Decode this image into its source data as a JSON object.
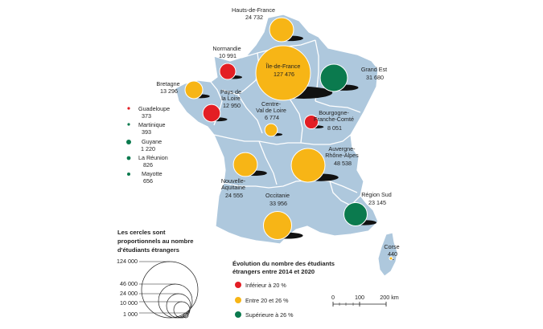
{
  "colors": {
    "land": "#aec8dd",
    "border": "#ffffff",
    "red": "#e31e24",
    "yellow": "#f7b516",
    "green": "#0b7a4e",
    "shadow": "#111111"
  },
  "regions": [
    {
      "name": "Hauts-de-France",
      "value": "24 732",
      "category": "Entre 20 et 26 %"
    },
    {
      "name": "Normandie",
      "value": "10 991",
      "category": "Inférieur à 20 %"
    },
    {
      "name": "Île-de-France",
      "value": "127 476",
      "category": "Entre 20 et 26 %"
    },
    {
      "name": "Grand Est",
      "value": "31 680",
      "category": "Supérieure à 26 %"
    },
    {
      "name": "Bretagne",
      "value": "13 296",
      "category": "Entre 20 et 26 %"
    },
    {
      "name": "Pays de la Loire",
      "value": "12 950",
      "category": "Inférieur à 20 %"
    },
    {
      "name": "Centre-Val de Loire",
      "value": "6 774",
      "category": "Entre 20 et 26 %"
    },
    {
      "name": "Bourgogne-Franche-Comté",
      "value": "8 051",
      "category": "Inférieur à 20 %"
    },
    {
      "name": "Nouvelle-Aquitaine",
      "value": "24 555",
      "category": "Entre 20 et 26 %"
    },
    {
      "name": "Auvergne-Rhône-Alpes",
      "value": "48 538",
      "category": "Entre 20 et 26 %"
    },
    {
      "name": "Occitanie",
      "value": "33 956",
      "category": "Entre 20 et 26 %"
    },
    {
      "name": "Région Sud",
      "value": "23 145",
      "category": "Supérieure à 26 %"
    },
    {
      "name": "Corse",
      "value": "440",
      "category": "Entre 20 et 26 %"
    }
  ],
  "labels": {
    "hdf": [
      "Hauts-de-France",
      "24 732"
    ],
    "nor": [
      "Normandie",
      "10 991"
    ],
    "idf": [
      "Île-de-France",
      "127 476"
    ],
    "ge": [
      "Grand Est",
      "31 680"
    ],
    "bre": [
      "Bretagne",
      "13 296"
    ],
    "pdl": [
      "Pays de",
      "la Loire",
      "12 950"
    ],
    "cvl": [
      "Centre-",
      "Val de Loire",
      "6 774"
    ],
    "bfc": [
      "Bourgogne-",
      "Franche-Comté",
      "8 051"
    ],
    "na": [
      "Nouvelle-",
      "Aquitaine",
      "24 555"
    ],
    "ara": [
      "Auvergne-",
      "Rhône-Alpes",
      "48 538"
    ],
    "occ": [
      "Occitanie",
      "33 956"
    ],
    "sud": [
      "Région Sud",
      "23 145"
    ],
    "cor": [
      "Corse",
      "440"
    ]
  },
  "overseas": [
    {
      "name": "Guadeloupe",
      "value": "373",
      "color": "red"
    },
    {
      "name": "Martinique",
      "value": "393",
      "color": "green"
    },
    {
      "name": "Guyane",
      "value": "1 220",
      "color": "green"
    },
    {
      "name": "La Réunion",
      "value": "826",
      "color": "green"
    },
    {
      "name": "Mayotte",
      "value": "656",
      "color": "green"
    }
  ],
  "size_legend": {
    "title_lines": [
      "Les cercles sont",
      "proportionnels au nombre",
      "d'étudiants étrangers"
    ],
    "values": [
      "124 000",
      "46 000",
      "24 000",
      "10 000",
      "1 000"
    ]
  },
  "color_legend": {
    "title_lines": [
      "Évolution du nombre des étudiants",
      "étrangers entre 2014 et 2020"
    ],
    "items": [
      {
        "label": "Inférieur à 20 %",
        "color": "red"
      },
      {
        "label": "Entre 20 et 26 %",
        "color": "yellow"
      },
      {
        "label": "Supérieure à 26 %",
        "color": "green"
      }
    ]
  },
  "scale_bar": {
    "labels": [
      "0",
      "100",
      "200 km"
    ]
  }
}
